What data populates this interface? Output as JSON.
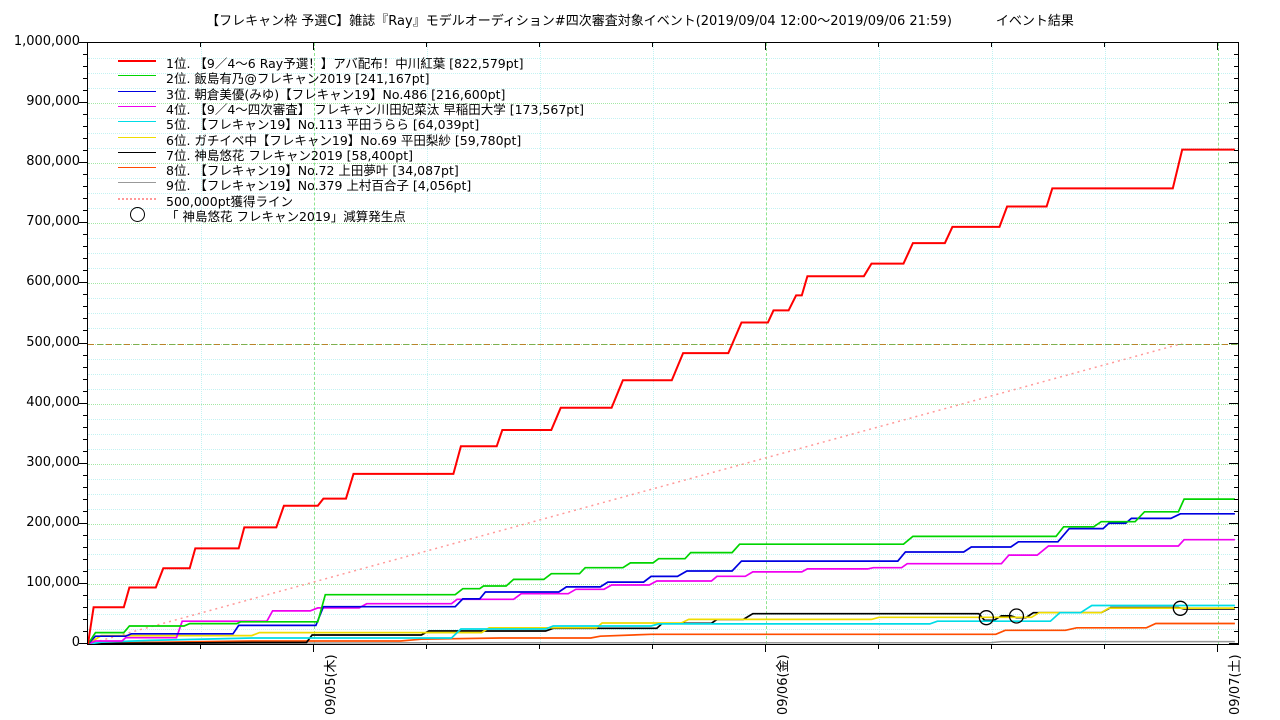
{
  "title": "【フレキャン枠 予選C】雑誌『Ray』モデルオーディション#四次審査対象イベント(2019/09/04 12:00～2019/09/06 21:59)",
  "title_suffix": "イベント結果",
  "chart_data": {
    "type": "line",
    "style": "cumulative step lines (gnuplot style)",
    "x_axis": {
      "start_label": "2019/09/04 12:00",
      "end_label": "2019/09/06 21:59",
      "unit": "hours since 2019/09/04 12:00",
      "range_hours": [
        0,
        61.06
      ],
      "major_ticks": [
        {
          "t": 12,
          "label": "09/05(木)"
        },
        {
          "t": 36,
          "label": "09/06(金)"
        },
        {
          "t": 60,
          "label": "09/07(土)"
        }
      ],
      "minor_ticks_t": [
        6,
        18,
        24,
        30,
        42,
        48,
        54
      ]
    },
    "y_axis": {
      "min": 0,
      "max": 1000000,
      "major_step": 100000,
      "minor_tick_step": 20000,
      "minor_grid_step": 25000,
      "labels": [
        "0",
        "100,000",
        "200,000",
        "300,000",
        "400,000",
        "500,000",
        "600,000",
        "700,000",
        "800,000",
        "900,000",
        "1,000,000"
      ]
    },
    "grid": {
      "major_color": "#a5e8a5",
      "minor_color": "#c3f2f2",
      "vertical_major_color": "#8fe48f"
    },
    "series": [
      {
        "rank": 1,
        "name": "1位. 【9／4～6 Ray予選！】アバ配布！中川紅葉 [822,579pt]",
        "final_pt": 822579,
        "color": "#ff0000",
        "width": 2,
        "points": [
          [
            0,
            0
          ],
          [
            0.3,
            61000
          ],
          [
            1.9,
            61000
          ],
          [
            2.2,
            94000
          ],
          [
            3.6,
            94000
          ],
          [
            4.0,
            126000
          ],
          [
            5.4,
            126000
          ],
          [
            5.7,
            159000
          ],
          [
            8.0,
            159000
          ],
          [
            8.3,
            194000
          ],
          [
            10.0,
            194000
          ],
          [
            10.4,
            230000
          ],
          [
            12.2,
            230000
          ],
          [
            12.5,
            242000
          ],
          [
            13.7,
            242000
          ],
          [
            14.1,
            283000
          ],
          [
            19.4,
            283000
          ],
          [
            19.8,
            329000
          ],
          [
            21.7,
            329000
          ],
          [
            22.0,
            356000
          ],
          [
            24.6,
            356000
          ],
          [
            25.1,
            393000
          ],
          [
            27.8,
            393000
          ],
          [
            28.4,
            439000
          ],
          [
            31.0,
            439000
          ],
          [
            31.6,
            484000
          ],
          [
            34.0,
            484000
          ],
          [
            34.7,
            535000
          ],
          [
            36.1,
            535000
          ],
          [
            36.4,
            555000
          ],
          [
            37.2,
            555000
          ],
          [
            37.6,
            580000
          ],
          [
            37.9,
            580000
          ],
          [
            38.2,
            612000
          ],
          [
            41.2,
            612000
          ],
          [
            41.6,
            633000
          ],
          [
            43.3,
            633000
          ],
          [
            43.8,
            667000
          ],
          [
            45.5,
            667000
          ],
          [
            45.9,
            694000
          ],
          [
            48.4,
            694000
          ],
          [
            48.8,
            728000
          ],
          [
            50.9,
            728000
          ],
          [
            51.2,
            758000
          ],
          [
            57.6,
            758000
          ],
          [
            58.1,
            822579
          ],
          [
            60.9,
            822579
          ]
        ]
      },
      {
        "rank": 2,
        "name": "2位. 飯島有乃@フレキャン2019 [241,167pt]",
        "final_pt": 241167,
        "color": "#00d400",
        "width": 1.7,
        "points": [
          [
            0,
            0
          ],
          [
            0.4,
            19000
          ],
          [
            1.9,
            19000
          ],
          [
            2.2,
            30000
          ],
          [
            5.1,
            30000
          ],
          [
            5.4,
            34000
          ],
          [
            7.9,
            34000
          ],
          [
            8.1,
            37000
          ],
          [
            12.2,
            37000
          ],
          [
            12.6,
            82000
          ],
          [
            19.5,
            82000
          ],
          [
            19.9,
            92000
          ],
          [
            20.8,
            92000
          ],
          [
            21.0,
            96500
          ],
          [
            22.2,
            96500
          ],
          [
            22.6,
            107500
          ],
          [
            24.2,
            107500
          ],
          [
            24.6,
            117000
          ],
          [
            26.1,
            117000
          ],
          [
            26.4,
            127000
          ],
          [
            28.4,
            127000
          ],
          [
            28.8,
            135000
          ],
          [
            30.0,
            135000
          ],
          [
            30.3,
            142000
          ],
          [
            31.7,
            142000
          ],
          [
            32.0,
            152000
          ],
          [
            34.2,
            152000
          ],
          [
            34.6,
            166000
          ],
          [
            43.3,
            166000
          ],
          [
            43.8,
            179000
          ],
          [
            51.4,
            179000
          ],
          [
            51.8,
            195000
          ],
          [
            53.4,
            195000
          ],
          [
            53.8,
            203500
          ],
          [
            55.6,
            203500
          ],
          [
            56.1,
            220000
          ],
          [
            57.9,
            220000
          ],
          [
            58.2,
            241167
          ],
          [
            60.9,
            241167
          ]
        ]
      },
      {
        "rank": 3,
        "name": "3位. 朝倉美優(みゆ)【フレキャン19】No.486  [216,600pt]",
        "final_pt": 216600,
        "color": "#0000e0",
        "width": 1.7,
        "points": [
          [
            0,
            0
          ],
          [
            0.4,
            13000
          ],
          [
            2.0,
            13000
          ],
          [
            2.3,
            17000
          ],
          [
            7.7,
            17000
          ],
          [
            8.0,
            31000
          ],
          [
            12.1,
            31000
          ],
          [
            12.5,
            62000
          ],
          [
            19.5,
            62000
          ],
          [
            19.9,
            75000
          ],
          [
            20.8,
            75000
          ],
          [
            21.1,
            86500
          ],
          [
            25.0,
            86500
          ],
          [
            25.4,
            95000
          ],
          [
            27.2,
            95000
          ],
          [
            27.6,
            103000
          ],
          [
            29.5,
            103000
          ],
          [
            29.9,
            112500
          ],
          [
            31.3,
            112500
          ],
          [
            31.8,
            121500
          ],
          [
            34.2,
            121500
          ],
          [
            34.7,
            138000
          ],
          [
            43.0,
            138000
          ],
          [
            43.4,
            153000
          ],
          [
            46.5,
            153000
          ],
          [
            46.9,
            161400
          ],
          [
            49.0,
            161400
          ],
          [
            49.4,
            170000
          ],
          [
            51.5,
            170000
          ],
          [
            52.1,
            192000
          ],
          [
            53.9,
            192000
          ],
          [
            54.2,
            200800
          ],
          [
            55.1,
            200800
          ],
          [
            55.4,
            209000
          ],
          [
            57.5,
            209000
          ],
          [
            58.0,
            216600
          ],
          [
            60.9,
            216600
          ]
        ]
      },
      {
        "rank": 4,
        "name": "4位. 【9／4～四次審査】 フレキャン川田妃菜汰 早稲田大学 [173,567pt]",
        "final_pt": 173567,
        "color": "#f000f0",
        "width": 1.7,
        "points": [
          [
            0,
            0
          ],
          [
            0.4,
            5000
          ],
          [
            1.8,
            5000
          ],
          [
            2.0,
            10500
          ],
          [
            4.7,
            10500
          ],
          [
            5.0,
            38000
          ],
          [
            9.5,
            38000
          ],
          [
            9.8,
            55000
          ],
          [
            11.8,
            55000
          ],
          [
            12.2,
            60000
          ],
          [
            14.4,
            60000
          ],
          [
            14.8,
            67000
          ],
          [
            19.3,
            67000
          ],
          [
            19.6,
            74400
          ],
          [
            22.6,
            74400
          ],
          [
            23.0,
            83700
          ],
          [
            25.5,
            83700
          ],
          [
            25.9,
            91000
          ],
          [
            27.4,
            91000
          ],
          [
            27.8,
            98200
          ],
          [
            29.8,
            98200
          ],
          [
            30.2,
            104800
          ],
          [
            33.1,
            104800
          ],
          [
            33.4,
            112600
          ],
          [
            34.9,
            112600
          ],
          [
            35.3,
            120000
          ],
          [
            37.9,
            120000
          ],
          [
            38.2,
            125000
          ],
          [
            41.4,
            125000
          ],
          [
            41.7,
            127000
          ],
          [
            43.2,
            127000
          ],
          [
            43.5,
            133600
          ],
          [
            48.5,
            133600
          ],
          [
            48.9,
            148000
          ],
          [
            50.4,
            148000
          ],
          [
            51.0,
            163000
          ],
          [
            57.9,
            163000
          ],
          [
            58.2,
            173567
          ],
          [
            60.9,
            173567
          ]
        ]
      },
      {
        "rank": 5,
        "name": "5位. 【フレキャン19】No.113 平田うらら [64,039pt]",
        "final_pt": 64039,
        "color": "#00dce6",
        "width": 1.7,
        "points": [
          [
            0,
            0
          ],
          [
            0.7,
            3000
          ],
          [
            3.3,
            6000
          ],
          [
            8.7,
            10000
          ],
          [
            19.3,
            10000
          ],
          [
            19.8,
            25000
          ],
          [
            24.3,
            25000
          ],
          [
            24.7,
            30000
          ],
          [
            29.9,
            30000
          ],
          [
            30.3,
            33500
          ],
          [
            44.7,
            33500
          ],
          [
            45.1,
            38000
          ],
          [
            51.1,
            38000
          ],
          [
            51.6,
            52000
          ],
          [
            52.7,
            52000
          ],
          [
            53.3,
            64039
          ],
          [
            60.9,
            64039
          ]
        ]
      },
      {
        "rank": 6,
        "name": "6位. ガチイベ中【フレキャン19】No.69 平田梨紗 [59,780pt]",
        "final_pt": 59780,
        "color": "#f0dc00",
        "width": 1.7,
        "points": [
          [
            0,
            0
          ],
          [
            0.7,
            14000
          ],
          [
            8.7,
            14000
          ],
          [
            9.1,
            19000
          ],
          [
            20.9,
            19000
          ],
          [
            21.3,
            27000
          ],
          [
            27.0,
            27000
          ],
          [
            27.3,
            35000
          ],
          [
            31.5,
            35000
          ],
          [
            31.9,
            41000
          ],
          [
            41.6,
            41000
          ],
          [
            42.0,
            44500
          ],
          [
            50.1,
            44500
          ],
          [
            50.5,
            52000
          ],
          [
            53.8,
            52000
          ],
          [
            54.2,
            59780
          ],
          [
            60.9,
            59780
          ]
        ]
      },
      {
        "rank": 7,
        "name": "7位. 神島悠花 フレキャン2019 [58,400pt]",
        "final_pt": 58400,
        "color": "#000000",
        "width": 1.7,
        "points": [
          [
            0,
            0
          ],
          [
            1.8,
            1000
          ],
          [
            8.7,
            2500
          ],
          [
            11.6,
            2500
          ],
          [
            11.9,
            15000
          ],
          [
            17.7,
            15000
          ],
          [
            18.1,
            21600
          ],
          [
            24.3,
            21600
          ],
          [
            24.7,
            26100
          ],
          [
            30.2,
            26100
          ],
          [
            30.5,
            34400
          ],
          [
            33.1,
            34400
          ],
          [
            33.4,
            41000
          ],
          [
            34.8,
            41000
          ],
          [
            35.3,
            50400
          ],
          [
            47.3,
            50400
          ],
          [
            47.6,
            39500
          ],
          [
            48.1,
            39500
          ],
          [
            48.5,
            47000
          ],
          [
            49.0,
            47000
          ],
          [
            49.3,
            44000
          ],
          [
            49.8,
            44000
          ],
          [
            50.2,
            52000
          ],
          [
            53.8,
            52000
          ],
          [
            54.3,
            60500
          ],
          [
            57.9,
            60500
          ],
          [
            58.2,
            58400
          ],
          [
            60.9,
            58400
          ]
        ]
      },
      {
        "rank": 8,
        "name": "8位. 【フレキャン19】No.72 上田夢叶 [34,087pt]",
        "final_pt": 34087,
        "color": "#ff4d00",
        "width": 1.7,
        "points": [
          [
            0,
            0
          ],
          [
            1.8,
            2000
          ],
          [
            8.7,
            5000
          ],
          [
            16.6,
            5000
          ],
          [
            17.7,
            8000
          ],
          [
            21.9,
            10000
          ],
          [
            26.7,
            10000
          ],
          [
            27.2,
            13000
          ],
          [
            29.9,
            16100
          ],
          [
            48.2,
            16100
          ],
          [
            48.7,
            22800
          ],
          [
            51.9,
            22800
          ],
          [
            52.5,
            27000
          ],
          [
            56.2,
            27000
          ],
          [
            56.7,
            34087
          ],
          [
            60.9,
            34087
          ]
        ]
      },
      {
        "rank": 9,
        "name": "9位. 【フレキャン19】No.379 上村百合子 [4,056pt]",
        "final_pt": 4056,
        "color": "#999999",
        "width": 1.5,
        "points": [
          [
            0,
            0
          ],
          [
            3.3,
            1000
          ],
          [
            16.6,
            2000
          ],
          [
            37.9,
            2200
          ],
          [
            47.9,
            2200
          ],
          [
            48.5,
            4056
          ],
          [
            60.9,
            4056
          ]
        ]
      }
    ],
    "pace_line": {
      "label": "500,000pt獲得ライン",
      "color": "#ff9999",
      "points": [
        [
          0,
          0
        ],
        [
          58.1,
          500000
        ]
      ]
    },
    "target_line": {
      "value": 500000
    },
    "deduction_markers": {
      "label": "「 神島悠花 フレキャン2019」減算発生点",
      "series": "7位. 神島悠花 フレキャン2019",
      "points": [
        [
          47.7,
          43800
        ],
        [
          49.3,
          46600
        ],
        [
          58.0,
          59400
        ]
      ]
    }
  }
}
